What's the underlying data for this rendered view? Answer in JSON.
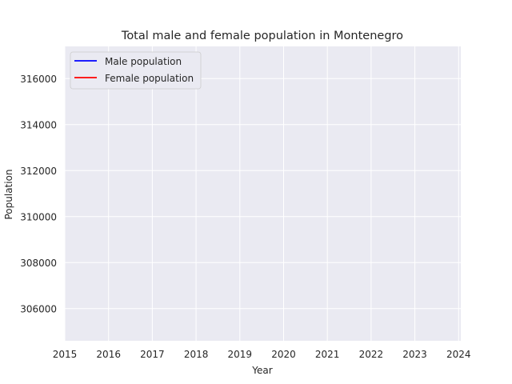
{
  "chart_data": {
    "type": "line",
    "title": "Total male and female population in Montenegro",
    "xlabel": "Year",
    "ylabel": "Population",
    "xlim": [
      2015,
      2024.05
    ],
    "ylim": [
      304600,
      317400
    ],
    "x_ticks": [
      2015,
      2016,
      2017,
      2018,
      2019,
      2020,
      2021,
      2022,
      2023,
      2024
    ],
    "y_ticks": [
      306000,
      308000,
      310000,
      312000,
      314000,
      316000
    ],
    "grid": true,
    "legend_position": "top-left",
    "series": [
      {
        "name": "Male population",
        "color": "#0000ff",
        "x": [],
        "values": []
      },
      {
        "name": "Female population",
        "color": "#ff0000",
        "x": [],
        "values": []
      }
    ]
  },
  "colors": {
    "plot_background": "#eaeaf2",
    "grid": "#ffffff",
    "text": "#262626"
  }
}
